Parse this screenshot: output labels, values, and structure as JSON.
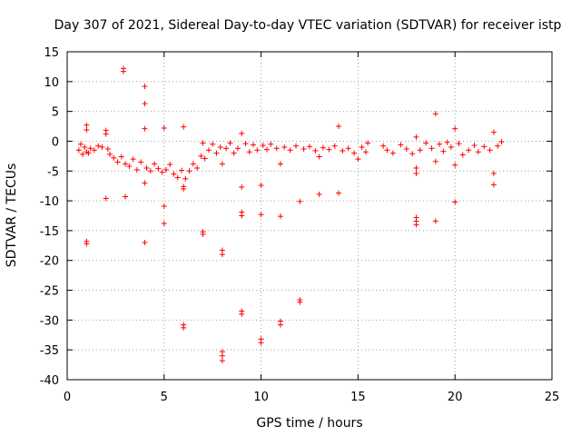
{
  "chart_data": {
    "type": "scatter",
    "title": "Day 307 of 2021, Sidereal Day-to-day VTEC variation (SDTVAR) for receiver istp",
    "xlabel": "GPS time / hours",
    "ylabel": "SDTVAR / TECUs",
    "xlim": [
      0,
      25
    ],
    "ylim": [
      -40,
      15
    ],
    "xticks": [
      0,
      5,
      10,
      15,
      20,
      25
    ],
    "yticks": [
      15,
      10,
      5,
      0,
      -5,
      -10,
      -15,
      -20,
      -25,
      -30,
      -35,
      -40
    ],
    "grid": true,
    "marker": "+",
    "color": "#ff0000",
    "series": [
      {
        "name": "SDTVAR",
        "points": [
          [
            0.6,
            -1.5
          ],
          [
            0.7,
            -0.5
          ],
          [
            0.8,
            -2.2
          ],
          [
            0.9,
            -1.0
          ],
          [
            1.0,
            -1.8
          ],
          [
            1.0,
            2.7
          ],
          [
            1.0,
            1.9
          ],
          [
            1.0,
            -16.8
          ],
          [
            1.0,
            -17.2
          ],
          [
            1.1,
            -2.0
          ],
          [
            1.2,
            -1.2
          ],
          [
            1.4,
            -1.5
          ],
          [
            1.6,
            -0.8
          ],
          [
            1.8,
            -1.0
          ],
          [
            2.0,
            1.8
          ],
          [
            2.0,
            1.2
          ],
          [
            2.0,
            -9.6
          ],
          [
            2.1,
            -1.3
          ],
          [
            2.2,
            -2.2
          ],
          [
            2.4,
            -2.8
          ],
          [
            2.6,
            -3.5
          ],
          [
            2.8,
            -2.6
          ],
          [
            2.9,
            12.2
          ],
          [
            2.9,
            11.7
          ],
          [
            3.0,
            -9.3
          ],
          [
            3.0,
            -3.8
          ],
          [
            3.2,
            -4.2
          ],
          [
            3.4,
            -3.0
          ],
          [
            3.6,
            -4.8
          ],
          [
            3.8,
            -3.5
          ],
          [
            4.0,
            9.2
          ],
          [
            4.0,
            6.3
          ],
          [
            4.0,
            2.1
          ],
          [
            4.0,
            -7.0
          ],
          [
            4.0,
            -17.0
          ],
          [
            4.1,
            -4.5
          ],
          [
            4.3,
            -5.0
          ],
          [
            4.5,
            -3.8
          ],
          [
            4.7,
            -4.6
          ],
          [
            4.9,
            -5.2
          ],
          [
            5.0,
            2.2
          ],
          [
            5.0,
            -10.9
          ],
          [
            5.0,
            -13.8
          ],
          [
            5.1,
            -4.8
          ],
          [
            5.3,
            -3.9
          ],
          [
            5.5,
            -5.5
          ],
          [
            5.7,
            -6.1
          ],
          [
            5.9,
            -4.9
          ],
          [
            6.0,
            2.4
          ],
          [
            6.0,
            -7.6
          ],
          [
            6.0,
            -8.0
          ],
          [
            6.0,
            -30.8
          ],
          [
            6.0,
            -31.3
          ],
          [
            6.1,
            -6.3
          ],
          [
            6.3,
            -5.0
          ],
          [
            6.5,
            -3.8
          ],
          [
            6.7,
            -4.5
          ],
          [
            6.9,
            -2.5
          ],
          [
            7.0,
            -0.3
          ],
          [
            7.0,
            -15.2
          ],
          [
            7.0,
            -15.6
          ],
          [
            7.1,
            -2.9
          ],
          [
            7.3,
            -1.5
          ],
          [
            7.5,
            -0.5
          ],
          [
            7.7,
            -2.0
          ],
          [
            7.9,
            -1.0
          ],
          [
            8.0,
            -3.8
          ],
          [
            8.0,
            -18.3
          ],
          [
            8.0,
            -19.0
          ],
          [
            8.0,
            -35.3
          ],
          [
            8.0,
            -36.0
          ],
          [
            8.0,
            -36.8
          ],
          [
            8.2,
            -1.2
          ],
          [
            8.4,
            -0.3
          ],
          [
            8.6,
            -2.0
          ],
          [
            8.8,
            -1.2
          ],
          [
            9.0,
            1.3
          ],
          [
            9.0,
            -7.7
          ],
          [
            9.0,
            -11.9
          ],
          [
            9.0,
            -12.5
          ],
          [
            9.0,
            -28.5
          ],
          [
            9.0,
            -29.0
          ],
          [
            9.2,
            -0.4
          ],
          [
            9.4,
            -1.8
          ],
          [
            9.6,
            -0.6
          ],
          [
            9.8,
            -1.5
          ],
          [
            10.0,
            -7.4
          ],
          [
            10.0,
            -12.3
          ],
          [
            10.0,
            -33.2
          ],
          [
            10.0,
            -33.8
          ],
          [
            10.1,
            -0.7
          ],
          [
            10.3,
            -1.4
          ],
          [
            10.5,
            -0.5
          ],
          [
            10.8,
            -1.2
          ],
          [
            11.0,
            -3.8
          ],
          [
            11.0,
            -12.6
          ],
          [
            11.0,
            -30.2
          ],
          [
            11.0,
            -30.8
          ],
          [
            11.2,
            -1.0
          ],
          [
            11.5,
            -1.5
          ],
          [
            11.8,
            -0.8
          ],
          [
            12.0,
            -10.1
          ],
          [
            12.0,
            -26.6
          ],
          [
            12.0,
            -27.0
          ],
          [
            12.2,
            -1.3
          ],
          [
            12.5,
            -0.9
          ],
          [
            12.8,
            -1.6
          ],
          [
            13.0,
            -8.9
          ],
          [
            13.0,
            -2.6
          ],
          [
            13.2,
            -1.1
          ],
          [
            13.5,
            -1.4
          ],
          [
            13.8,
            -0.8
          ],
          [
            14.0,
            2.5
          ],
          [
            14.0,
            -8.7
          ],
          [
            14.2,
            -1.6
          ],
          [
            14.5,
            -1.2
          ],
          [
            14.8,
            -2.0
          ],
          [
            15.0,
            -3.0
          ],
          [
            15.2,
            -1.0
          ],
          [
            15.4,
            -1.8
          ],
          [
            15.5,
            -0.3
          ],
          [
            16.3,
            -0.8
          ],
          [
            16.5,
            -1.5
          ],
          [
            16.8,
            -2.0
          ],
          [
            17.2,
            -0.6
          ],
          [
            17.5,
            -1.3
          ],
          [
            17.8,
            -2.1
          ],
          [
            18.0,
            0.7
          ],
          [
            18.0,
            -4.5
          ],
          [
            18.0,
            -5.4
          ],
          [
            18.0,
            -12.8
          ],
          [
            18.0,
            -13.4
          ],
          [
            18.0,
            -14.0
          ],
          [
            18.2,
            -1.5
          ],
          [
            18.5,
            -0.3
          ],
          [
            18.8,
            -1.2
          ],
          [
            19.0,
            4.6
          ],
          [
            19.0,
            -3.4
          ],
          [
            19.0,
            -13.4
          ],
          [
            19.2,
            -0.5
          ],
          [
            19.4,
            -1.7
          ],
          [
            19.6,
            -0.2
          ],
          [
            19.8,
            -1.0
          ],
          [
            20.0,
            2.1
          ],
          [
            20.0,
            -4.0
          ],
          [
            20.0,
            -10.2
          ],
          [
            20.2,
            -0.4
          ],
          [
            20.4,
            -2.3
          ],
          [
            20.7,
            -1.5
          ],
          [
            21.0,
            -0.7
          ],
          [
            21.2,
            -1.8
          ],
          [
            21.5,
            -0.9
          ],
          [
            21.8,
            -1.5
          ],
          [
            22.0,
            1.5
          ],
          [
            22.0,
            -5.4
          ],
          [
            22.0,
            -7.3
          ],
          [
            22.2,
            -0.8
          ],
          [
            22.4,
            -0.1
          ]
        ]
      }
    ]
  }
}
